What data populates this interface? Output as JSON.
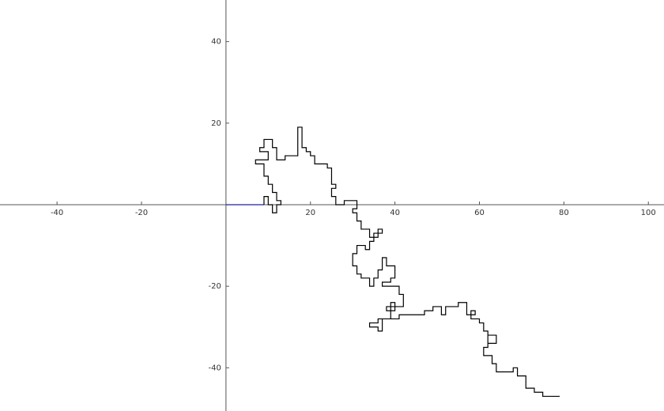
{
  "chart_data": {
    "type": "line",
    "xlim": [
      -53.5,
      103.7
    ],
    "ylim": [
      -50.6,
      50.2
    ],
    "xticks": [
      -40,
      -20,
      20,
      40,
      60,
      80,
      100
    ],
    "yticks": [
      -40,
      -20,
      20,
      40
    ],
    "series": [
      {
        "color": "#2020a0",
        "x": [
          0,
          9
        ],
        "y": [
          0,
          0
        ]
      },
      {
        "color": "#000000",
        "x": [
          9,
          9,
          10,
          10,
          11,
          11,
          12,
          12,
          13,
          13,
          12,
          12,
          11,
          11,
          10,
          10,
          9,
          9,
          7,
          7,
          10,
          10,
          8,
          8,
          9,
          9,
          11,
          11,
          12,
          12,
          14,
          14,
          17,
          17,
          18,
          18,
          19,
          19,
          20,
          20,
          21,
          21,
          24,
          24,
          25,
          25,
          26,
          26,
          25,
          25,
          26,
          26,
          28,
          28,
          31,
          31,
          30,
          30,
          31,
          31,
          32,
          32,
          34,
          34,
          36,
          36,
          37,
          37,
          35,
          35,
          34,
          34,
          33,
          33,
          31,
          31,
          30,
          30,
          31,
          31,
          32,
          32,
          34,
          34,
          35,
          35,
          36,
          36,
          37,
          37,
          38,
          38,
          40,
          40,
          39,
          39,
          37,
          37,
          41,
          41,
          42,
          42,
          38,
          38,
          40,
          40,
          39,
          39,
          37,
          37,
          36,
          36,
          34,
          34,
          36,
          36,
          41,
          41,
          47,
          47,
          49,
          49,
          51,
          51,
          52,
          52,
          55,
          55,
          57,
          57,
          59,
          59,
          58,
          58,
          60,
          60,
          61,
          61,
          62,
          62,
          64,
          64,
          62,
          62,
          61,
          61,
          63,
          63,
          64,
          64,
          68,
          68,
          69,
          69,
          71,
          71,
          73,
          73,
          75,
          75,
          79
        ],
        "y": [
          0,
          2,
          2,
          0,
          0,
          -2,
          -2,
          0,
          0,
          1,
          1,
          3,
          3,
          5,
          5,
          7,
          7,
          10,
          10,
          11,
          11,
          13,
          13,
          14,
          14,
          16,
          16,
          14,
          14,
          11,
          11,
          12,
          12,
          19,
          19,
          14,
          14,
          13,
          13,
          12,
          12,
          10,
          10,
          9,
          9,
          5,
          5,
          4,
          4,
          2,
          2,
          0,
          0,
          1,
          1,
          -1,
          -1,
          -2,
          -2,
          -4,
          -4,
          -6,
          -6,
          -8,
          -8,
          -6,
          -6,
          -7,
          -7,
          -9,
          -9,
          -11,
          -11,
          -10,
          -10,
          -12,
          -12,
          -15,
          -15,
          -17,
          -17,
          -18,
          -18,
          -20,
          -20,
          -18,
          -18,
          -16,
          -16,
          -13,
          -13,
          -15,
          -15,
          -18,
          -18,
          -19,
          -19,
          -20,
          -20,
          -22,
          -22,
          -25,
          -25,
          -26,
          -26,
          -24,
          -24,
          -28,
          -28,
          -31,
          -31,
          -30,
          -30,
          -29,
          -29,
          -28,
          -28,
          -27,
          -27,
          -26,
          -26,
          -25,
          -25,
          -27,
          -27,
          -25,
          -25,
          -24,
          -24,
          -27,
          -27,
          -26,
          -26,
          -28,
          -28,
          -29,
          -29,
          -31,
          -31,
          -34,
          -34,
          -32,
          -32,
          -35,
          -35,
          -37,
          -37,
          -39,
          -39,
          -41,
          -41,
          -40,
          -40,
          -42,
          -42,
          -45,
          -45,
          -46,
          -46,
          -47,
          -47
        ]
      }
    ]
  }
}
